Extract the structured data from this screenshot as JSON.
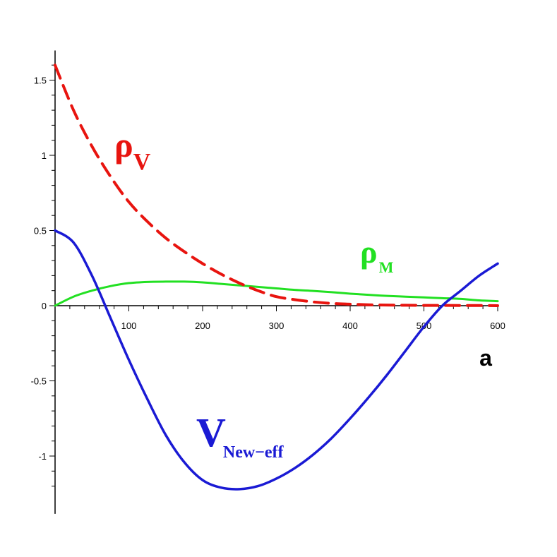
{
  "chart_data": {
    "type": "line",
    "title": "",
    "xlabel": "a",
    "ylabel": "",
    "xlim": [
      0,
      600
    ],
    "ylim": [
      -1.3,
      1.65
    ],
    "x_ticks": [
      100,
      200,
      300,
      400,
      500,
      600
    ],
    "y_ticks": [
      -1,
      -0.5,
      0,
      0.5,
      1,
      1.5
    ],
    "x_tick_labels": [
      "100",
      "200",
      "300",
      "400",
      "500",
      "600"
    ],
    "y_tick_labels": [
      "-1",
      "-0.5",
      "0",
      "0.5",
      "1",
      "1.5"
    ],
    "grid": false,
    "legend": "none",
    "series": [
      {
        "name": "ρ",
        "subscript": "V",
        "color": "#e8140f",
        "style": "dashed",
        "x": [
          0,
          25,
          50,
          75,
          100,
          125,
          150,
          175,
          200,
          225,
          250,
          275,
          300,
          325,
          350,
          375,
          400,
          425,
          450,
          475,
          500,
          525,
          550,
          575,
          600
        ],
        "y": [
          1.6,
          1.3,
          1.06,
          0.86,
          0.69,
          0.56,
          0.45,
          0.36,
          0.28,
          0.21,
          0.15,
          0.1,
          0.06,
          0.04,
          0.025,
          0.015,
          0.01,
          0.006,
          0.004,
          0.003,
          0.002,
          0.002,
          0.001,
          0.001,
          0.0
        ]
      },
      {
        "name": "ρ",
        "subscript": "M",
        "color": "#22e022",
        "style": "solid",
        "x": [
          0,
          25,
          50,
          75,
          100,
          125,
          150,
          175,
          200,
          225,
          250,
          275,
          300,
          325,
          350,
          375,
          400,
          425,
          450,
          475,
          500,
          525,
          550,
          575,
          600
        ],
        "y": [
          0.0,
          0.06,
          0.1,
          0.13,
          0.15,
          0.158,
          0.16,
          0.16,
          0.155,
          0.145,
          0.135,
          0.125,
          0.115,
          0.105,
          0.098,
          0.09,
          0.08,
          0.072,
          0.065,
          0.06,
          0.055,
          0.05,
          0.045,
          0.035,
          0.03
        ]
      },
      {
        "name": "V",
        "subscript": "New−eff",
        "color": "#1a1ad4",
        "style": "solid",
        "x": [
          0,
          25,
          50,
          75,
          100,
          125,
          150,
          175,
          200,
          225,
          250,
          275,
          300,
          325,
          350,
          375,
          400,
          425,
          450,
          475,
          500,
          525,
          550,
          575,
          600
        ],
        "y": [
          0.5,
          0.42,
          0.2,
          -0.08,
          -0.36,
          -0.62,
          -0.86,
          -1.04,
          -1.16,
          -1.21,
          -1.22,
          -1.2,
          -1.15,
          -1.08,
          -0.99,
          -0.88,
          -0.75,
          -0.61,
          -0.46,
          -0.3,
          -0.14,
          0.0,
          0.1,
          0.2,
          0.28
        ]
      }
    ]
  }
}
